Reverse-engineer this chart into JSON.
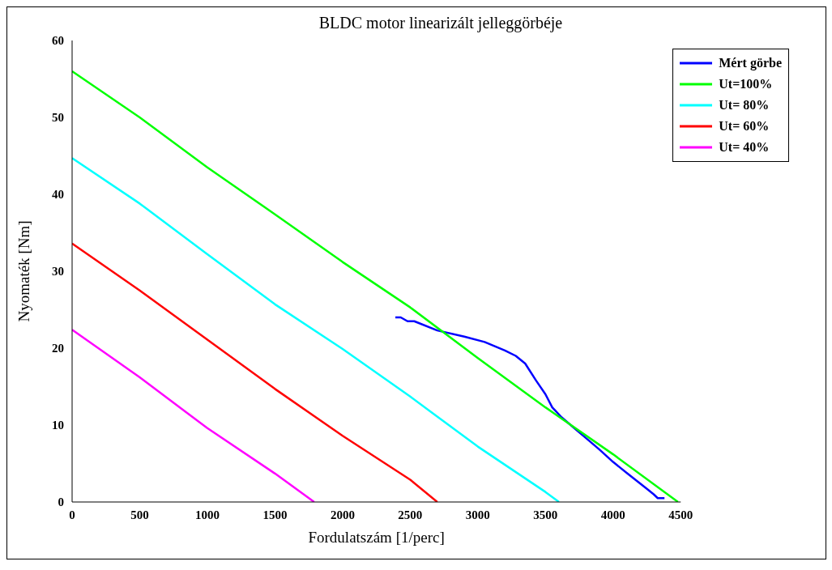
{
  "chart_data": {
    "type": "line",
    "title": "BLDC motor linearizált jelleggörbéje",
    "xlabel": "Fordulatszám [1/perc]",
    "ylabel": "Nyomaték [Nm]",
    "xlim": [
      0,
      4500
    ],
    "xticks": [
      0,
      500,
      1000,
      1500,
      2000,
      2500,
      3000,
      3500,
      4000,
      4500
    ],
    "ylim": [
      0,
      60
    ],
    "yticks": [
      0,
      10,
      20,
      30,
      40,
      50,
      60
    ],
    "grid": false,
    "legend": "top right",
    "marker": "none",
    "line_style": "solid",
    "series": [
      {
        "name": "Mért görbe",
        "color": "#0000ff",
        "x": [
          2390,
          2430,
          2480,
          2530,
          2700,
          2900,
          3050,
          3200,
          3280,
          3350,
          3430,
          3500,
          3550,
          3620,
          3720,
          3800,
          3900,
          4000,
          4100,
          4250,
          4300,
          4330,
          4380
        ],
        "values": [
          24,
          24,
          23.5,
          23.5,
          22.3,
          21.5,
          20.8,
          19.7,
          19,
          18,
          15.8,
          14,
          12.3,
          11,
          9.5,
          8.3,
          6.8,
          5.2,
          3.8,
          1.7,
          1,
          0.5,
          0.5
        ]
      },
      {
        "name": "Ut=100%",
        "color": "#00ff00",
        "x": [
          0,
          500,
          1000,
          1500,
          2000,
          2500,
          3000,
          3500,
          4000,
          4480
        ],
        "values": [
          56,
          50,
          43.5,
          37.4,
          31.2,
          25.3,
          18.7,
          12.3,
          6.2,
          0
        ]
      },
      {
        "name": "Ut= 80%",
        "color": "#00ffff",
        "x": [
          0,
          500,
          1000,
          1500,
          2000,
          2500,
          3000,
          3500,
          3600
        ],
        "values": [
          44.7,
          38.8,
          32.2,
          25.7,
          19.9,
          13.7,
          7.2,
          1.3,
          0
        ]
      },
      {
        "name": "Ut= 60%",
        "color": "#ff0000",
        "x": [
          0,
          500,
          1000,
          1500,
          2000,
          2500,
          2700
        ],
        "values": [
          33.6,
          27.5,
          21.1,
          14.7,
          8.6,
          2.9,
          0
        ]
      },
      {
        "name": "Ut= 40%",
        "color": "#ff00ff",
        "x": [
          0,
          500,
          1000,
          1500,
          1790
        ],
        "values": [
          22.4,
          16.2,
          9.6,
          3.7,
          0
        ]
      }
    ]
  }
}
